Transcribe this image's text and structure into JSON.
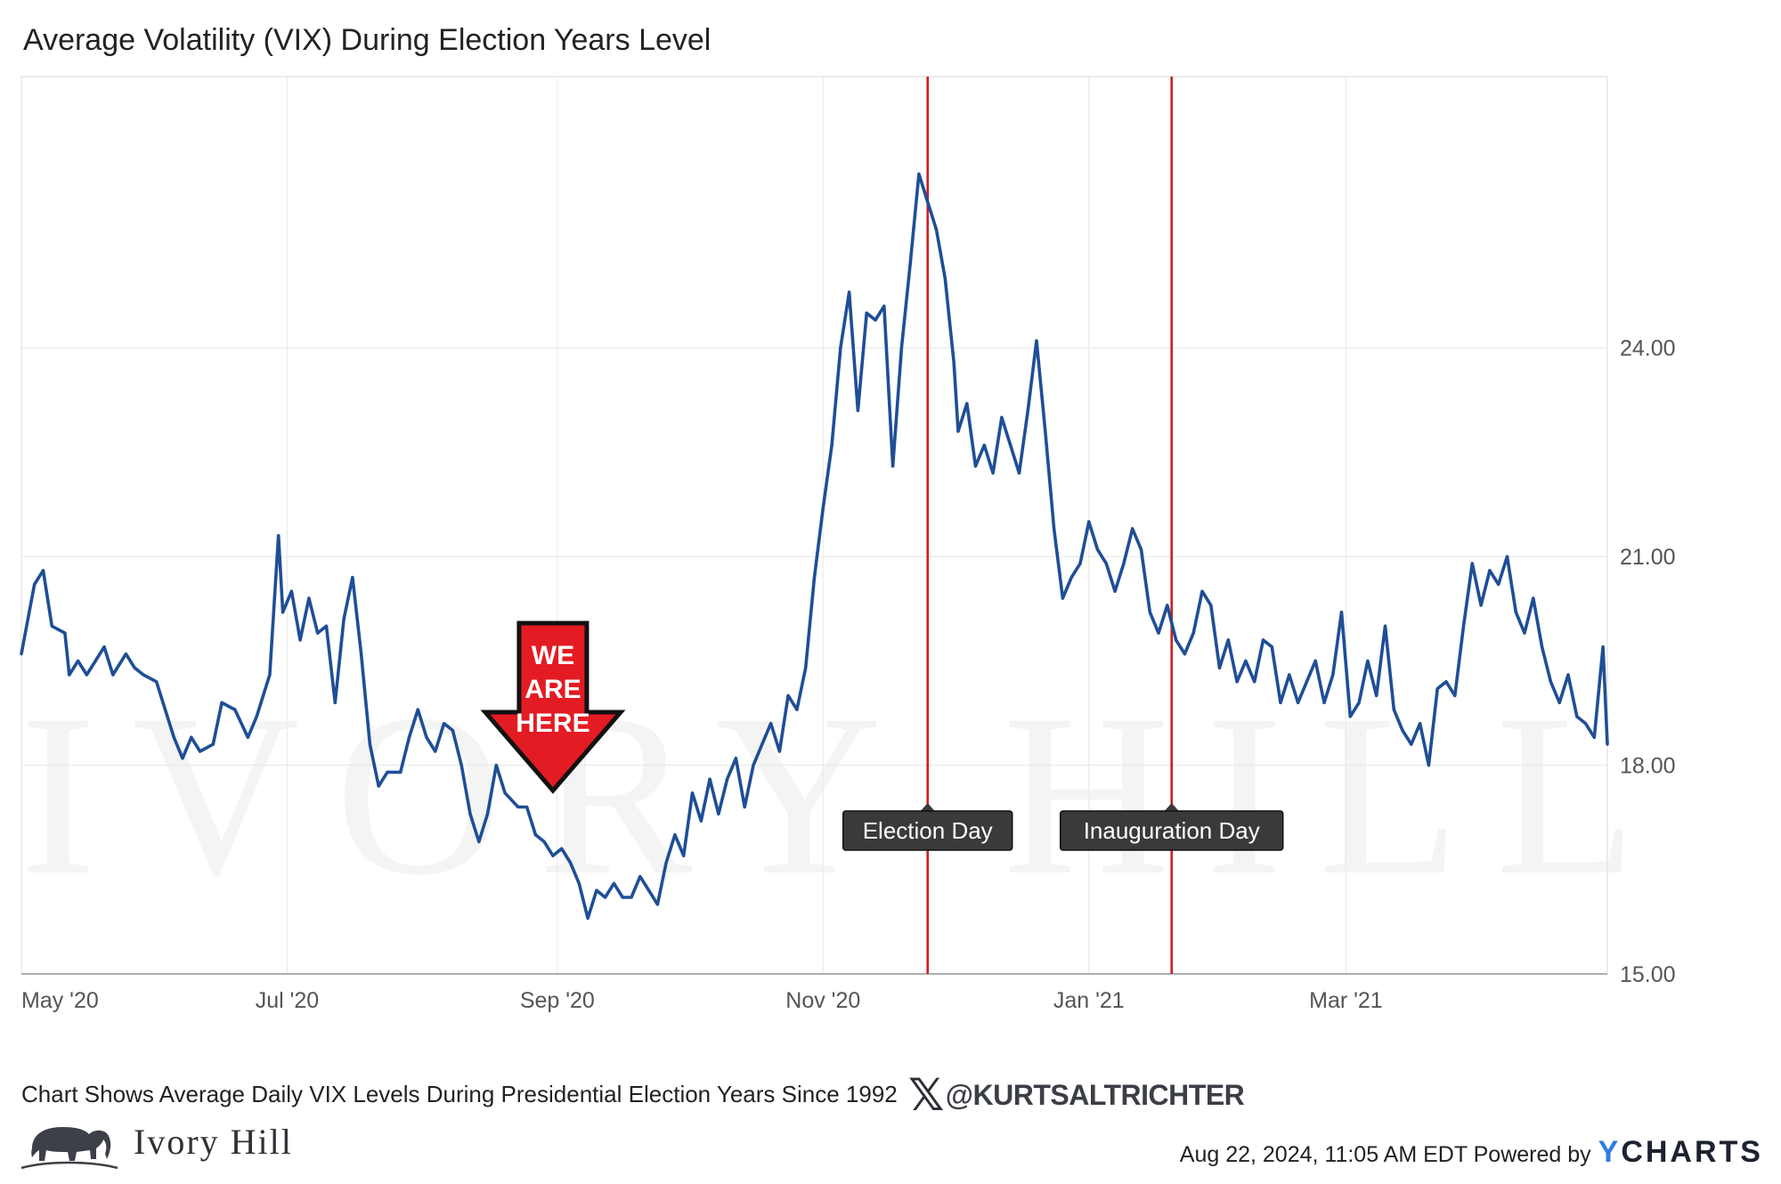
{
  "title": "Average Volatility (VIX) During Election Years Level",
  "footnote": "Chart Shows Average Daily VIX Levels During Presidential Election Years Since 1992",
  "handle": "@KURTSALTRICHTER",
  "handle_icon": "x-logo-icon",
  "brand": {
    "name": "Ivory Hill",
    "logo_icon": "elephant-logo-icon",
    "watermark": "IVORY HILL"
  },
  "timestamp": "Aug 22, 2024, 11:05 AM EDT Powered by",
  "powered_by": {
    "y": "Y",
    "rest": "CHARTS"
  },
  "colors": {
    "line": "#1f4e96",
    "event_line": "#cc2020",
    "arrow": "#e31b23",
    "annotation_bg": "#3a3a3a"
  },
  "chart_data": {
    "type": "line",
    "title": "Average Volatility (VIX) During Election Years Level",
    "xlabel": "",
    "ylabel": "",
    "x_ticks": [
      "May '20",
      "Jul '20",
      "Sep '20",
      "Nov '20",
      "Jan '21",
      "Mar '21"
    ],
    "y_ticks": [
      "15.00",
      "18.00",
      "21.00",
      "24.00"
    ],
    "ylim": [
      15,
      27.9
    ],
    "xlim": [
      "2020-05-01",
      "2021-04-30"
    ],
    "y_axis_position": "right",
    "grid": true,
    "series": [
      {
        "values": [
          [
            "2020-05-01",
            19.6
          ],
          [
            "2020-05-04",
            20.6
          ],
          [
            "2020-05-06",
            20.8
          ],
          [
            "2020-05-08",
            20.0
          ],
          [
            "2020-05-11",
            19.9
          ],
          [
            "2020-05-12",
            19.3
          ],
          [
            "2020-05-14",
            19.5
          ],
          [
            "2020-05-16",
            19.3
          ],
          [
            "2020-05-18",
            19.5
          ],
          [
            "2020-05-20",
            19.7
          ],
          [
            "2020-05-22",
            19.3
          ],
          [
            "2020-05-25",
            19.6
          ],
          [
            "2020-05-27",
            19.4
          ],
          [
            "2020-05-29",
            19.3
          ],
          [
            "2020-06-01",
            19.2
          ],
          [
            "2020-06-03",
            18.8
          ],
          [
            "2020-06-05",
            18.4
          ],
          [
            "2020-06-07",
            18.1
          ],
          [
            "2020-06-09",
            18.4
          ],
          [
            "2020-06-11",
            18.2
          ],
          [
            "2020-06-14",
            18.3
          ],
          [
            "2020-06-16",
            18.9
          ],
          [
            "2020-06-19",
            18.8
          ],
          [
            "2020-06-22",
            18.4
          ],
          [
            "2020-06-24",
            18.7
          ],
          [
            "2020-06-27",
            19.3
          ],
          [
            "2020-06-29",
            21.3
          ],
          [
            "2020-06-30",
            20.2
          ],
          [
            "2020-07-02",
            20.5
          ],
          [
            "2020-07-04",
            19.8
          ],
          [
            "2020-07-06",
            20.4
          ],
          [
            "2020-07-08",
            19.9
          ],
          [
            "2020-07-10",
            20.0
          ],
          [
            "2020-07-12",
            18.9
          ],
          [
            "2020-07-14",
            20.1
          ],
          [
            "2020-07-16",
            20.7
          ],
          [
            "2020-07-18",
            19.6
          ],
          [
            "2020-07-20",
            18.3
          ],
          [
            "2020-07-22",
            17.7
          ],
          [
            "2020-07-24",
            17.9
          ],
          [
            "2020-07-27",
            17.9
          ],
          [
            "2020-07-29",
            18.4
          ],
          [
            "2020-07-31",
            18.8
          ],
          [
            "2020-08-02",
            18.4
          ],
          [
            "2020-08-04",
            18.2
          ],
          [
            "2020-08-06",
            18.6
          ],
          [
            "2020-08-08",
            18.5
          ],
          [
            "2020-08-10",
            18.0
          ],
          [
            "2020-08-12",
            17.3
          ],
          [
            "2020-08-14",
            16.9
          ],
          [
            "2020-08-16",
            17.3
          ],
          [
            "2020-08-18",
            18.0
          ],
          [
            "2020-08-20",
            17.6
          ],
          [
            "2020-08-23",
            17.4
          ],
          [
            "2020-08-25",
            17.4
          ],
          [
            "2020-08-27",
            17.0
          ],
          [
            "2020-08-29",
            16.9
          ],
          [
            "2020-08-31",
            16.7
          ],
          [
            "2020-09-02",
            16.8
          ],
          [
            "2020-09-04",
            16.6
          ],
          [
            "2020-09-06",
            16.3
          ],
          [
            "2020-09-08",
            15.8
          ],
          [
            "2020-09-10",
            16.2
          ],
          [
            "2020-09-12",
            16.1
          ],
          [
            "2020-09-14",
            16.3
          ],
          [
            "2020-09-16",
            16.1
          ],
          [
            "2020-09-18",
            16.1
          ],
          [
            "2020-09-20",
            16.4
          ],
          [
            "2020-09-22",
            16.2
          ],
          [
            "2020-09-24",
            16.0
          ],
          [
            "2020-09-26",
            16.6
          ],
          [
            "2020-09-28",
            17.0
          ],
          [
            "2020-09-30",
            16.7
          ],
          [
            "2020-10-02",
            17.6
          ],
          [
            "2020-10-04",
            17.2
          ],
          [
            "2020-10-06",
            17.8
          ],
          [
            "2020-10-08",
            17.3
          ],
          [
            "2020-10-10",
            17.8
          ],
          [
            "2020-10-12",
            18.1
          ],
          [
            "2020-10-14",
            17.4
          ],
          [
            "2020-10-16",
            18.0
          ],
          [
            "2020-10-18",
            18.3
          ],
          [
            "2020-10-20",
            18.6
          ],
          [
            "2020-10-22",
            18.2
          ],
          [
            "2020-10-24",
            19.0
          ],
          [
            "2020-10-26",
            18.8
          ],
          [
            "2020-10-28",
            19.4
          ],
          [
            "2020-10-30",
            20.7
          ],
          [
            "2020-11-01",
            21.7
          ],
          [
            "2020-11-03",
            22.6
          ],
          [
            "2020-11-05",
            24.0
          ],
          [
            "2020-11-07",
            24.8
          ],
          [
            "2020-11-09",
            23.1
          ],
          [
            "2020-11-11",
            24.5
          ],
          [
            "2020-11-13",
            24.4
          ],
          [
            "2020-11-15",
            24.6
          ],
          [
            "2020-11-17",
            22.3
          ],
          [
            "2020-11-19",
            24.0
          ],
          [
            "2020-11-21",
            25.2
          ],
          [
            "2020-11-23",
            26.5
          ],
          [
            "2020-11-25",
            26.1
          ],
          [
            "2020-11-27",
            25.7
          ],
          [
            "2020-11-29",
            25.0
          ],
          [
            "2020-12-01",
            23.8
          ],
          [
            "2020-12-02",
            22.8
          ],
          [
            "2020-12-04",
            23.2
          ],
          [
            "2020-12-06",
            22.3
          ],
          [
            "2020-12-08",
            22.6
          ],
          [
            "2020-12-10",
            22.2
          ],
          [
            "2020-12-12",
            23.0
          ],
          [
            "2020-12-14",
            22.6
          ],
          [
            "2020-12-16",
            22.2
          ],
          [
            "2020-12-18",
            23.1
          ],
          [
            "2020-12-20",
            24.1
          ],
          [
            "2020-12-22",
            22.8
          ],
          [
            "2020-12-24",
            21.4
          ],
          [
            "2020-12-26",
            20.4
          ],
          [
            "2020-12-28",
            20.7
          ],
          [
            "2020-12-30",
            20.9
          ],
          [
            "2021-01-01",
            21.5
          ],
          [
            "2021-01-03",
            21.1
          ],
          [
            "2021-01-05",
            20.9
          ],
          [
            "2021-01-07",
            20.5
          ],
          [
            "2021-01-09",
            20.9
          ],
          [
            "2021-01-11",
            21.4
          ],
          [
            "2021-01-13",
            21.1
          ],
          [
            "2021-01-15",
            20.2
          ],
          [
            "2021-01-17",
            19.9
          ],
          [
            "2021-01-19",
            20.3
          ],
          [
            "2021-01-21",
            19.8
          ],
          [
            "2021-01-23",
            19.6
          ],
          [
            "2021-01-25",
            19.9
          ],
          [
            "2021-01-27",
            20.5
          ],
          [
            "2021-01-29",
            20.3
          ],
          [
            "2021-01-31",
            19.4
          ],
          [
            "2021-02-02",
            19.8
          ],
          [
            "2021-02-04",
            19.2
          ],
          [
            "2021-02-06",
            19.5
          ],
          [
            "2021-02-08",
            19.2
          ],
          [
            "2021-02-10",
            19.8
          ],
          [
            "2021-02-12",
            19.7
          ],
          [
            "2021-02-14",
            18.9
          ],
          [
            "2021-02-16",
            19.3
          ],
          [
            "2021-02-18",
            18.9
          ],
          [
            "2021-02-20",
            19.2
          ],
          [
            "2021-02-22",
            19.5
          ],
          [
            "2021-02-24",
            18.9
          ],
          [
            "2021-02-26",
            19.3
          ],
          [
            "2021-02-28",
            20.2
          ],
          [
            "2021-03-02",
            18.7
          ],
          [
            "2021-03-04",
            18.9
          ],
          [
            "2021-03-06",
            19.5
          ],
          [
            "2021-03-08",
            19.0
          ],
          [
            "2021-03-10",
            20.0
          ],
          [
            "2021-03-12",
            18.8
          ],
          [
            "2021-03-14",
            18.5
          ],
          [
            "2021-03-16",
            18.3
          ],
          [
            "2021-03-18",
            18.6
          ],
          [
            "2021-03-20",
            18.0
          ],
          [
            "2021-03-22",
            19.1
          ],
          [
            "2021-03-24",
            19.2
          ],
          [
            "2021-03-26",
            19.0
          ],
          [
            "2021-03-28",
            20.0
          ],
          [
            "2021-03-30",
            20.9
          ],
          [
            "2021-04-01",
            20.3
          ],
          [
            "2021-04-03",
            20.8
          ],
          [
            "2021-04-05",
            20.6
          ],
          [
            "2021-04-07",
            21.0
          ],
          [
            "2021-04-09",
            20.2
          ],
          [
            "2021-04-11",
            19.9
          ],
          [
            "2021-04-13",
            20.4
          ],
          [
            "2021-04-15",
            19.7
          ],
          [
            "2021-04-17",
            19.2
          ],
          [
            "2021-04-19",
            18.9
          ],
          [
            "2021-04-21",
            19.3
          ],
          [
            "2021-04-23",
            18.7
          ],
          [
            "2021-04-25",
            18.6
          ],
          [
            "2021-04-27",
            18.4
          ],
          [
            "2021-04-29",
            19.7
          ],
          [
            "2021-04-30",
            18.3
          ]
        ]
      }
    ],
    "event_lines": [
      {
        "date": "2020-11-25",
        "label": "Election Day"
      },
      {
        "date": "2021-01-20",
        "label": "Inauguration Day"
      }
    ],
    "callout": {
      "date": "2020-08-31",
      "lines": [
        "WE",
        "ARE",
        "HERE"
      ]
    }
  }
}
